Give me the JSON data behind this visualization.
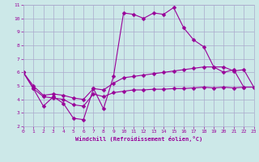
{
  "xlabel": "Windchill (Refroidissement éolien,°C)",
  "bg_color": "#cce8e8",
  "grid_color": "#aaaacc",
  "line_color": "#990099",
  "xlim": [
    0,
    23
  ],
  "ylim": [
    2,
    11
  ],
  "xticks": [
    0,
    1,
    2,
    3,
    4,
    5,
    6,
    7,
    8,
    9,
    10,
    11,
    12,
    13,
    14,
    15,
    16,
    17,
    18,
    19,
    20,
    21,
    22,
    23
  ],
  "yticks": [
    2,
    3,
    4,
    5,
    6,
    7,
    8,
    9,
    10,
    11
  ],
  "series": [
    {
      "x": [
        0,
        1,
        2,
        3,
        4,
        5,
        6,
        7,
        8,
        9,
        10,
        11,
        12,
        13,
        14,
        15,
        16,
        17,
        18,
        19,
        20,
        21,
        22
      ],
      "y": [
        6.0,
        4.8,
        3.5,
        4.2,
        3.7,
        2.6,
        2.5,
        4.8,
        3.3,
        5.7,
        10.4,
        10.3,
        10.0,
        10.4,
        10.3,
        10.8,
        9.3,
        8.4,
        7.9,
        6.4,
        6.0,
        6.2,
        4.9
      ]
    },
    {
      "x": [
        0,
        1,
        2,
        3,
        4,
        5,
        6,
        7,
        8,
        9,
        10,
        11,
        12,
        13,
        14,
        15,
        16,
        17,
        18,
        19,
        20,
        21,
        22,
        23
      ],
      "y": [
        6.0,
        5.0,
        4.3,
        4.4,
        4.3,
        4.1,
        4.0,
        4.8,
        4.7,
        5.2,
        5.6,
        5.7,
        5.8,
        5.9,
        6.0,
        6.1,
        6.2,
        6.3,
        6.4,
        6.4,
        6.4,
        6.1,
        6.2,
        4.9
      ]
    },
    {
      "x": [
        0,
        1,
        2,
        3,
        4,
        5,
        6,
        7,
        8,
        9,
        10,
        11,
        12,
        13,
        14,
        15,
        16,
        17,
        18,
        19,
        20,
        21,
        22,
        23
      ],
      "y": [
        6.0,
        4.8,
        4.2,
        4.1,
        4.0,
        3.6,
        3.5,
        4.4,
        4.2,
        4.5,
        4.6,
        4.7,
        4.7,
        4.75,
        4.75,
        4.8,
        4.8,
        4.85,
        4.9,
        4.85,
        4.9,
        4.85,
        4.9,
        4.9
      ]
    }
  ]
}
